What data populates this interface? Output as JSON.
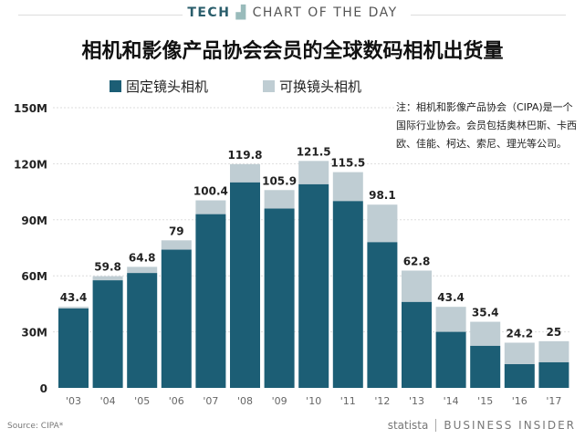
{
  "header": {
    "tech": "TECH",
    "chart_of_day": "CHART OF THE DAY"
  },
  "note": "注：相机和影像产品协会（CIPA)是一个国际行业协会。会员包括奥林巴斯、卡西欧、佳能、柯达、索尼、理光等公司。",
  "footer": {
    "source": "Source: CIPA*",
    "statista": "statista",
    "brand": "BUSINESS INSIDER"
  },
  "colors": {
    "fixed": "#1c5e75",
    "interchangeable": "#bfcdd3"
  },
  "chart_data": {
    "type": "bar",
    "stacked": true,
    "title": "相机和影像产品协会会员的全球数码相机出货量",
    "categories": [
      "'03",
      "'04",
      "'05",
      "'06",
      "'07",
      "'08",
      "'09",
      "'10",
      "'11",
      "'12",
      "'13",
      "'14",
      "'15",
      "'16",
      "'17"
    ],
    "series": [
      {
        "name": "固定镜头相机",
        "values": [
          42.5,
          57.6,
          61.5,
          74,
          93,
          110,
          96,
          109,
          100,
          78,
          46,
          30,
          22.5,
          12.7,
          13.7
        ]
      },
      {
        "name": "可换镜头相机",
        "values": [
          0.9,
          2.2,
          3.3,
          5,
          7.4,
          9.8,
          9.9,
          12.5,
          15.5,
          20.1,
          16.8,
          13.4,
          12.9,
          11.5,
          11.3
        ]
      }
    ],
    "totals": [
      "43.4",
      "59.8",
      "64.8",
      "79",
      "100.4",
      "119.8",
      "105.9",
      "121.5",
      "115.5",
      "98.1",
      "62.8",
      "43.4",
      "35.4",
      "24.2",
      "25"
    ],
    "yticks": [
      "0",
      "30M",
      "60M",
      "90M",
      "120M",
      "150M"
    ],
    "ytick_values": [
      0,
      30,
      60,
      90,
      120,
      150
    ],
    "ylim": [
      0,
      150
    ],
    "legend": "top-left"
  }
}
